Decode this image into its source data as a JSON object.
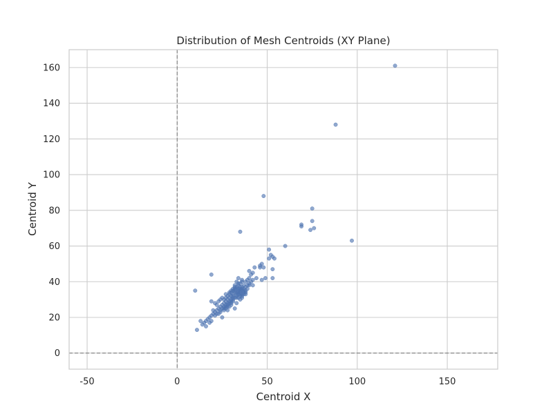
{
  "chart_data": {
    "type": "scatter",
    "title": "Distribution of Mesh Centroids (XY Plane)",
    "xlabel": "Centroid X",
    "ylabel": "Centroid Y",
    "xlim": [
      -60,
      178
    ],
    "ylim": [
      -9,
      170
    ],
    "xticks": [
      -50,
      0,
      50,
      100,
      150
    ],
    "yticks": [
      0,
      20,
      40,
      60,
      80,
      100,
      120,
      140,
      160
    ],
    "grid": true,
    "reference_lines": {
      "x": 0,
      "y": 0
    },
    "colors": {
      "point": "#4c72b0",
      "grid": "#cccccc",
      "frame": "#cccccc",
      "reference": "#7f7f7f"
    },
    "points": [
      [
        121,
        161
      ],
      [
        88,
        128
      ],
      [
        48,
        88
      ],
      [
        75,
        81
      ],
      [
        75,
        74
      ],
      [
        69,
        72
      ],
      [
        69,
        71
      ],
      [
        76,
        70
      ],
      [
        74,
        69
      ],
      [
        97,
        63
      ],
      [
        35,
        68
      ],
      [
        60,
        60
      ],
      [
        51,
        58
      ],
      [
        52,
        55
      ],
      [
        53,
        54
      ],
      [
        51,
        53
      ],
      [
        54,
        53
      ],
      [
        47,
        50
      ],
      [
        46,
        49
      ],
      [
        48,
        48
      ],
      [
        46,
        48
      ],
      [
        43,
        48
      ],
      [
        40,
        46
      ],
      [
        42,
        45
      ],
      [
        41,
        44
      ],
      [
        53,
        47
      ],
      [
        10,
        35
      ],
      [
        19,
        44
      ],
      [
        49,
        42
      ],
      [
        53,
        42
      ],
      [
        47,
        41
      ],
      [
        44,
        42
      ],
      [
        42,
        41
      ],
      [
        40,
        42
      ],
      [
        39,
        41
      ],
      [
        38,
        40
      ],
      [
        36,
        40
      ],
      [
        34,
        39
      ],
      [
        32,
        38
      ],
      [
        33,
        37
      ],
      [
        35,
        37
      ],
      [
        37,
        38
      ],
      [
        38,
        37
      ],
      [
        39,
        38
      ],
      [
        40,
        38
      ],
      [
        35,
        36
      ],
      [
        36,
        35
      ],
      [
        34,
        35
      ],
      [
        33,
        34
      ],
      [
        32,
        34
      ],
      [
        31,
        33
      ],
      [
        30,
        32
      ],
      [
        29,
        31
      ],
      [
        31,
        31
      ],
      [
        28,
        30
      ],
      [
        27,
        29
      ],
      [
        26,
        28
      ],
      [
        25,
        27
      ],
      [
        24,
        26
      ],
      [
        23,
        25
      ],
      [
        22,
        24
      ],
      [
        21,
        23
      ],
      [
        20,
        22
      ],
      [
        19,
        21
      ],
      [
        18,
        20
      ],
      [
        17,
        19
      ],
      [
        16,
        18
      ],
      [
        15,
        17
      ],
      [
        14,
        16
      ],
      [
        11,
        13
      ],
      [
        13,
        18
      ],
      [
        16,
        15
      ],
      [
        18,
        17
      ],
      [
        19,
        18
      ],
      [
        20,
        24
      ],
      [
        19,
        29
      ],
      [
        21,
        28
      ],
      [
        22,
        27
      ],
      [
        23,
        29
      ],
      [
        24,
        23
      ],
      [
        25,
        20
      ],
      [
        26,
        25
      ],
      [
        27,
        26
      ],
      [
        28,
        27
      ],
      [
        29,
        28
      ],
      [
        30,
        29
      ],
      [
        31,
        30
      ],
      [
        32,
        31
      ],
      [
        33,
        32
      ],
      [
        34,
        33
      ],
      [
        35,
        34
      ],
      [
        36,
        33
      ],
      [
        37,
        34
      ],
      [
        38,
        35
      ],
      [
        36,
        31
      ],
      [
        35,
        30
      ],
      [
        33,
        28
      ],
      [
        32,
        25
      ],
      [
        30,
        27
      ],
      [
        28,
        24
      ],
      [
        27,
        33
      ],
      [
        25,
        31
      ],
      [
        24,
        30
      ],
      [
        29,
        34
      ],
      [
        30,
        35
      ],
      [
        31,
        36
      ],
      [
        32,
        37
      ],
      [
        34,
        38
      ],
      [
        35,
        39
      ],
      [
        36,
        41
      ],
      [
        34,
        42
      ],
      [
        33,
        40
      ],
      [
        37,
        36
      ],
      [
        38,
        33
      ],
      [
        39,
        36
      ],
      [
        40,
        39
      ],
      [
        41,
        40
      ],
      [
        42,
        38
      ],
      [
        33,
        36
      ],
      [
        34,
        36
      ],
      [
        35,
        35
      ],
      [
        36,
        37
      ],
      [
        32,
        35
      ],
      [
        33,
        33
      ],
      [
        31,
        32
      ],
      [
        30,
        30
      ],
      [
        29,
        29
      ],
      [
        28,
        28
      ],
      [
        27,
        27
      ],
      [
        26,
        26
      ],
      [
        25,
        25
      ],
      [
        24,
        24
      ],
      [
        23,
        22
      ],
      [
        22,
        22
      ],
      [
        21,
        21
      ],
      [
        26,
        30
      ],
      [
        27,
        31
      ],
      [
        28,
        32
      ],
      [
        29,
        33
      ],
      [
        30,
        34
      ],
      [
        31,
        35
      ],
      [
        32,
        36
      ],
      [
        34,
        34
      ],
      [
        35,
        32
      ],
      [
        36,
        32
      ],
      [
        37,
        33
      ],
      [
        38,
        34
      ],
      [
        33,
        31
      ],
      [
        34,
        31
      ],
      [
        35,
        33
      ],
      [
        36,
        36
      ],
      [
        37,
        35
      ],
      [
        31,
        29
      ],
      [
        30,
        28
      ],
      [
        29,
        26
      ],
      [
        28,
        26
      ],
      [
        27,
        25
      ],
      [
        26,
        24
      ]
    ]
  }
}
